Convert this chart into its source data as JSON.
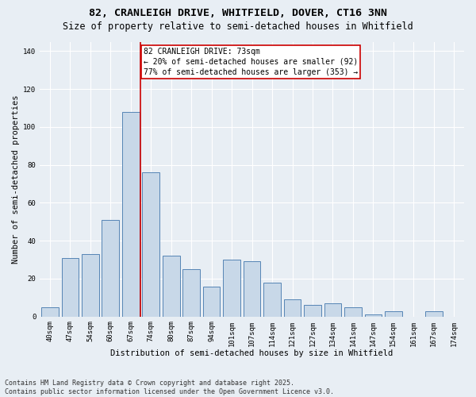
{
  "title_line1": "82, CRANLEIGH DRIVE, WHITFIELD, DOVER, CT16 3NN",
  "title_line2": "Size of property relative to semi-detached houses in Whitfield",
  "xlabel": "Distribution of semi-detached houses by size in Whitfield",
  "ylabel": "Number of semi-detached properties",
  "categories": [
    "40sqm",
    "47sqm",
    "54sqm",
    "60sqm",
    "67sqm",
    "74sqm",
    "80sqm",
    "87sqm",
    "94sqm",
    "101sqm",
    "107sqm",
    "114sqm",
    "121sqm",
    "127sqm",
    "134sqm",
    "141sqm",
    "147sqm",
    "154sqm",
    "161sqm",
    "167sqm",
    "174sqm"
  ],
  "values": [
    5,
    31,
    33,
    51,
    108,
    76,
    32,
    25,
    16,
    30,
    29,
    18,
    9,
    6,
    7,
    5,
    1,
    3,
    0,
    3,
    0
  ],
  "bar_color": "#c8d8e8",
  "bar_edge_color": "#5585b5",
  "vline_x_index": 4.5,
  "vline_color": "#cc0000",
  "annotation_text": "82 CRANLEIGH DRIVE: 73sqm\n← 20% of semi-detached houses are smaller (92)\n77% of semi-detached houses are larger (353) →",
  "annotation_box_color": "#ffffff",
  "annotation_box_edge": "#cc0000",
  "ylim": [
    0,
    145
  ],
  "yticks": [
    0,
    20,
    40,
    60,
    80,
    100,
    120,
    140
  ],
  "background_color": "#e8eef4",
  "plot_background": "#e8eef4",
  "footnote": "Contains HM Land Registry data © Crown copyright and database right 2025.\nContains public sector information licensed under the Open Government Licence v3.0.",
  "title_fontsize": 9.5,
  "subtitle_fontsize": 8.5,
  "label_fontsize": 7.5,
  "tick_fontsize": 6.5,
  "annot_fontsize": 7,
  "footnote_fontsize": 6
}
